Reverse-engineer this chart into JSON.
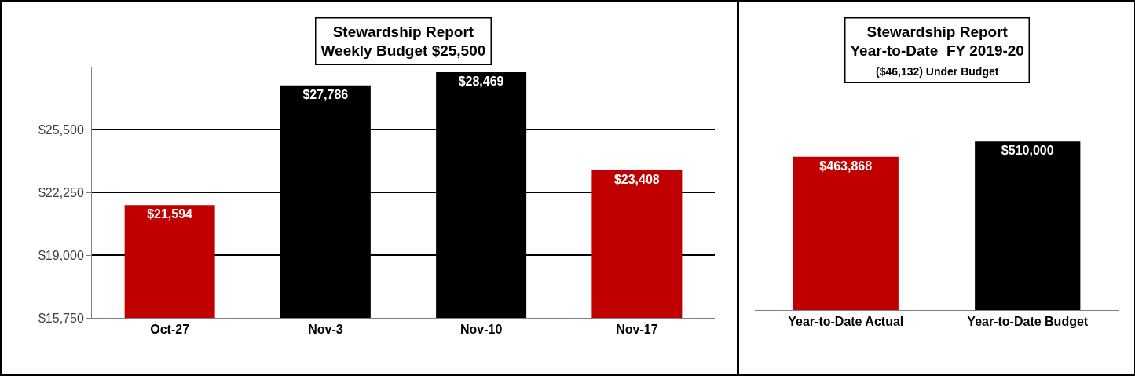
{
  "chart_data": [
    {
      "type": "bar",
      "title": "Stewardship Report\nWeekly Budget $25,500",
      "categories": [
        "Oct-27",
        "Nov-3",
        "Nov-10",
        "Nov-17"
      ],
      "values": [
        21594,
        27786,
        28469,
        23408
      ],
      "value_labels": [
        "$21,594",
        "$27,786",
        "$28,469",
        "$23,408"
      ],
      "colors": [
        "#c00000",
        "#000000",
        "#000000",
        "#c00000"
      ],
      "ylim": [
        15750,
        28750
      ],
      "yticks": [
        {
          "value": 15750,
          "label": "$15,750"
        },
        {
          "value": 19000,
          "label": "$19,000"
        },
        {
          "value": 22250,
          "label": "$22,250"
        },
        {
          "value": 25500,
          "label": "$25,500"
        }
      ],
      "grid": "y"
    },
    {
      "type": "bar",
      "title": "Stewardship Report\nYear-to-Date  FY 2019-20",
      "subtitle": "($46,132) Under Budget",
      "categories": [
        "Year-to-Date Actual",
        "Year-to-Date Budget"
      ],
      "values": [
        463868,
        510000
      ],
      "value_labels": [
        "$463,868",
        "$510,000"
      ],
      "colors": [
        "#c00000",
        "#000000"
      ],
      "tick_labels": "x",
      "grid": false
    }
  ]
}
